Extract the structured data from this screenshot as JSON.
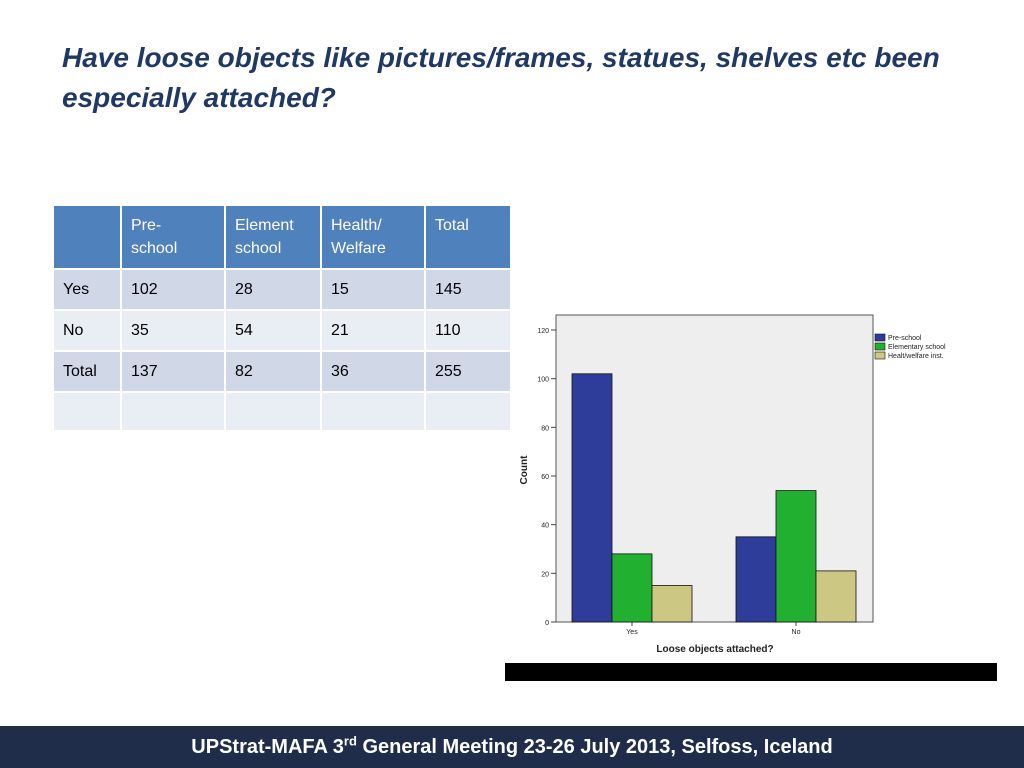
{
  "title": "Have loose objects like pictures/frames, statues, shelves etc been especially attached?",
  "table": {
    "headers": [
      "",
      "Pre-\nschool",
      "Element\nschool",
      "Health/\nWelfare",
      "Total"
    ],
    "rows": [
      [
        "Yes",
        "102",
        "28",
        "15",
        "145"
      ],
      [
        "No",
        "35",
        "54",
        "21",
        "110"
      ],
      [
        "Total",
        "137",
        "82",
        "36",
        "255"
      ],
      [
        "",
        "",
        "",
        "",
        ""
      ]
    ]
  },
  "chart_data": {
    "type": "bar",
    "categories": [
      "Yes",
      "No"
    ],
    "series": [
      {
        "name": "Pre-school",
        "values": [
          102,
          35
        ],
        "color": "#2e3d9a"
      },
      {
        "name": "Elementary school",
        "values": [
          28,
          54
        ],
        "color": "#22b030"
      },
      {
        "name": "Healt/welfare inst.",
        "values": [
          15,
          21
        ],
        "color": "#cdc784"
      }
    ],
    "xlabel": "Loose objects attached?",
    "ylabel": "Count",
    "ylim": [
      0,
      120
    ],
    "yticks": [
      0,
      20,
      40,
      60,
      80,
      100,
      120
    ],
    "legend": "top-right",
    "grid": false,
    "plot_background": "#eeeeee"
  },
  "footer": {
    "prefix": "UPStrat-MAFA 3",
    "superscript": "rd",
    "suffix": " General Meeting 23-26 July 2013, Selfoss, Iceland"
  }
}
